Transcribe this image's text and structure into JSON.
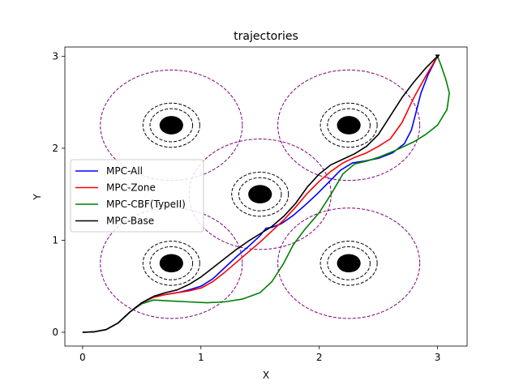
{
  "chart_data": {
    "type": "line",
    "title": "trajectories",
    "xlabel": "X",
    "ylabel": "Y",
    "xlim": [
      -0.15,
      3.25
    ],
    "ylim": [
      -0.15,
      3.1
    ],
    "xticks": [
      0,
      1,
      2,
      3
    ],
    "yticks": [
      0,
      1,
      2,
      3
    ],
    "grid": false,
    "legend_position": "center-left",
    "obstacles": [
      {
        "center": [
          0.75,
          0.75
        ],
        "radius": 0.1
      },
      {
        "center": [
          0.75,
          2.25
        ],
        "radius": 0.1
      },
      {
        "center": [
          1.5,
          1.5
        ],
        "radius": 0.1
      },
      {
        "center": [
          2.25,
          2.25
        ],
        "radius": 0.1
      },
      {
        "center": [
          2.25,
          0.75
        ],
        "radius": 0.1
      }
    ],
    "safety_rings": [
      0.18,
      0.24
    ],
    "zone_radius": 0.6,
    "colors": {
      "obstacle": "#000000",
      "ring": "#000000",
      "zone": "#800080"
    },
    "goal": [
      3.0,
      3.0
    ],
    "series": [
      {
        "name": "MPC-All",
        "color": "#0000ff",
        "points": [
          [
            0,
            0
          ],
          [
            0.1,
            0.005
          ],
          [
            0.2,
            0.03
          ],
          [
            0.3,
            0.1
          ],
          [
            0.4,
            0.22
          ],
          [
            0.5,
            0.32
          ],
          [
            0.6,
            0.38
          ],
          [
            0.7,
            0.41
          ],
          [
            0.8,
            0.43
          ],
          [
            0.9,
            0.46
          ],
          [
            1.0,
            0.5
          ],
          [
            1.1,
            0.58
          ],
          [
            1.2,
            0.7
          ],
          [
            1.3,
            0.82
          ],
          [
            1.4,
            0.93
          ],
          [
            1.5,
            1.05
          ],
          [
            1.55,
            1.13
          ],
          [
            1.6,
            1.14
          ],
          [
            1.68,
            1.18
          ],
          [
            1.78,
            1.27
          ],
          [
            1.88,
            1.38
          ],
          [
            1.98,
            1.5
          ],
          [
            2.08,
            1.63
          ],
          [
            2.18,
            1.76
          ],
          [
            2.28,
            1.84
          ],
          [
            2.38,
            1.86
          ],
          [
            2.5,
            1.89
          ],
          [
            2.62,
            1.95
          ],
          [
            2.72,
            2.05
          ],
          [
            2.78,
            2.2
          ],
          [
            2.82,
            2.4
          ],
          [
            2.86,
            2.6
          ],
          [
            2.92,
            2.8
          ],
          [
            3.0,
            3.0
          ]
        ]
      },
      {
        "name": "MPC-Zone",
        "color": "#ff0000",
        "points": [
          [
            0,
            0
          ],
          [
            0.1,
            0.005
          ],
          [
            0.2,
            0.03
          ],
          [
            0.3,
            0.1
          ],
          [
            0.4,
            0.22
          ],
          [
            0.5,
            0.32
          ],
          [
            0.6,
            0.38
          ],
          [
            0.7,
            0.41
          ],
          [
            0.8,
            0.43
          ],
          [
            0.9,
            0.45
          ],
          [
            1.0,
            0.48
          ],
          [
            1.1,
            0.55
          ],
          [
            1.2,
            0.65
          ],
          [
            1.3,
            0.76
          ],
          [
            1.4,
            0.87
          ],
          [
            1.5,
            0.98
          ],
          [
            1.6,
            1.1
          ],
          [
            1.7,
            1.22
          ],
          [
            1.8,
            1.36
          ],
          [
            1.9,
            1.51
          ],
          [
            2.0,
            1.64
          ],
          [
            2.1,
            1.75
          ],
          [
            2.2,
            1.84
          ],
          [
            2.3,
            1.9
          ],
          [
            2.4,
            1.95
          ],
          [
            2.5,
            2.02
          ],
          [
            2.6,
            2.1
          ],
          [
            2.7,
            2.28
          ],
          [
            2.8,
            2.55
          ],
          [
            2.9,
            2.78
          ],
          [
            3.0,
            3.0
          ]
        ]
      },
      {
        "name": "MPC-CBF(TypeII)",
        "color": "#008000",
        "points": [
          [
            0,
            0
          ],
          [
            0.1,
            0.005
          ],
          [
            0.2,
            0.03
          ],
          [
            0.3,
            0.1
          ],
          [
            0.4,
            0.22
          ],
          [
            0.5,
            0.31
          ],
          [
            0.6,
            0.35
          ],
          [
            0.75,
            0.34
          ],
          [
            0.9,
            0.33
          ],
          [
            1.05,
            0.32
          ],
          [
            1.2,
            0.33
          ],
          [
            1.35,
            0.36
          ],
          [
            1.5,
            0.43
          ],
          [
            1.6,
            0.55
          ],
          [
            1.7,
            0.75
          ],
          [
            1.78,
            0.95
          ],
          [
            1.88,
            1.12
          ],
          [
            2.0,
            1.3
          ],
          [
            2.1,
            1.5
          ],
          [
            2.2,
            1.72
          ],
          [
            2.3,
            1.83
          ],
          [
            2.4,
            1.86
          ],
          [
            2.5,
            1.9
          ],
          [
            2.65,
            1.98
          ],
          [
            2.8,
            2.07
          ],
          [
            2.9,
            2.15
          ],
          [
            3.0,
            2.25
          ],
          [
            3.08,
            2.42
          ],
          [
            3.1,
            2.6
          ],
          [
            3.07,
            2.75
          ],
          [
            3.03,
            2.9
          ],
          [
            3.0,
            3.0
          ]
        ]
      },
      {
        "name": "MPC-Base",
        "color": "#000000",
        "points": [
          [
            0,
            0
          ],
          [
            0.1,
            0.005
          ],
          [
            0.2,
            0.03
          ],
          [
            0.3,
            0.1
          ],
          [
            0.4,
            0.22
          ],
          [
            0.5,
            0.32
          ],
          [
            0.6,
            0.39
          ],
          [
            0.7,
            0.43
          ],
          [
            0.8,
            0.46
          ],
          [
            0.9,
            0.52
          ],
          [
            1.0,
            0.6
          ],
          [
            1.1,
            0.7
          ],
          [
            1.2,
            0.8
          ],
          [
            1.3,
            0.9
          ],
          [
            1.4,
            0.99
          ],
          [
            1.5,
            1.07
          ],
          [
            1.6,
            1.15
          ],
          [
            1.7,
            1.26
          ],
          [
            1.8,
            1.4
          ],
          [
            1.9,
            1.58
          ],
          [
            2.0,
            1.72
          ],
          [
            2.1,
            1.82
          ],
          [
            2.2,
            1.88
          ],
          [
            2.3,
            1.94
          ],
          [
            2.4,
            2.02
          ],
          [
            2.5,
            2.15
          ],
          [
            2.6,
            2.35
          ],
          [
            2.7,
            2.55
          ],
          [
            2.8,
            2.72
          ],
          [
            2.9,
            2.87
          ],
          [
            3.0,
            3.0
          ]
        ]
      }
    ]
  }
}
